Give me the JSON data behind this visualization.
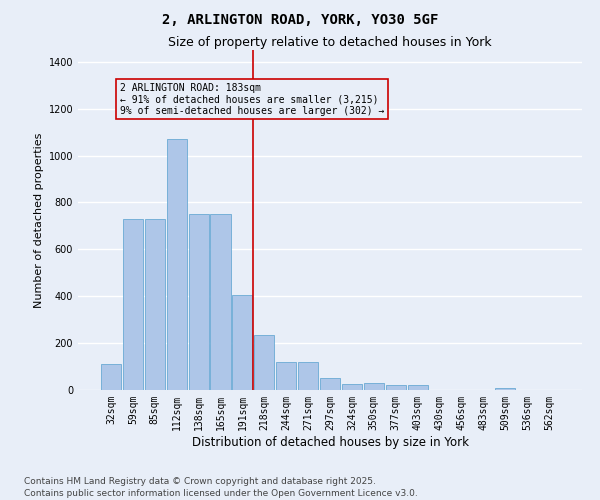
{
  "title": "2, ARLINGTON ROAD, YORK, YO30 5GF",
  "subtitle": "Size of property relative to detached houses in York",
  "xlabel": "Distribution of detached houses by size in York",
  "ylabel": "Number of detached properties",
  "categories": [
    "32sqm",
    "59sqm",
    "85sqm",
    "112sqm",
    "138sqm",
    "165sqm",
    "191sqm",
    "218sqm",
    "244sqm",
    "271sqm",
    "297sqm",
    "324sqm",
    "350sqm",
    "377sqm",
    "403sqm",
    "430sqm",
    "456sqm",
    "483sqm",
    "509sqm",
    "536sqm",
    "562sqm"
  ],
  "values": [
    110,
    730,
    730,
    1070,
    750,
    750,
    405,
    235,
    120,
    120,
    50,
    25,
    30,
    20,
    20,
    0,
    0,
    0,
    10,
    0,
    0
  ],
  "bar_color": "#aec6e8",
  "bar_edgecolor": "#6aaad4",
  "vline_x_index": 6,
  "vline_color": "#cc0000",
  "annotation_text": "2 ARLINGTON ROAD: 183sqm\n← 91% of detached houses are smaller (3,215)\n9% of semi-detached houses are larger (302) →",
  "annotation_box_color": "#cc0000",
  "ylim": [
    0,
    1450
  ],
  "yticks": [
    0,
    200,
    400,
    600,
    800,
    1000,
    1200,
    1400
  ],
  "bg_color": "#e8eef8",
  "grid_color": "#ffffff",
  "footer": "Contains HM Land Registry data © Crown copyright and database right 2025.\nContains public sector information licensed under the Open Government Licence v3.0.",
  "title_fontsize": 10,
  "subtitle_fontsize": 9,
  "ylabel_fontsize": 8,
  "xlabel_fontsize": 8.5,
  "footer_fontsize": 6.5,
  "tick_fontsize": 7,
  "annot_fontsize": 7
}
